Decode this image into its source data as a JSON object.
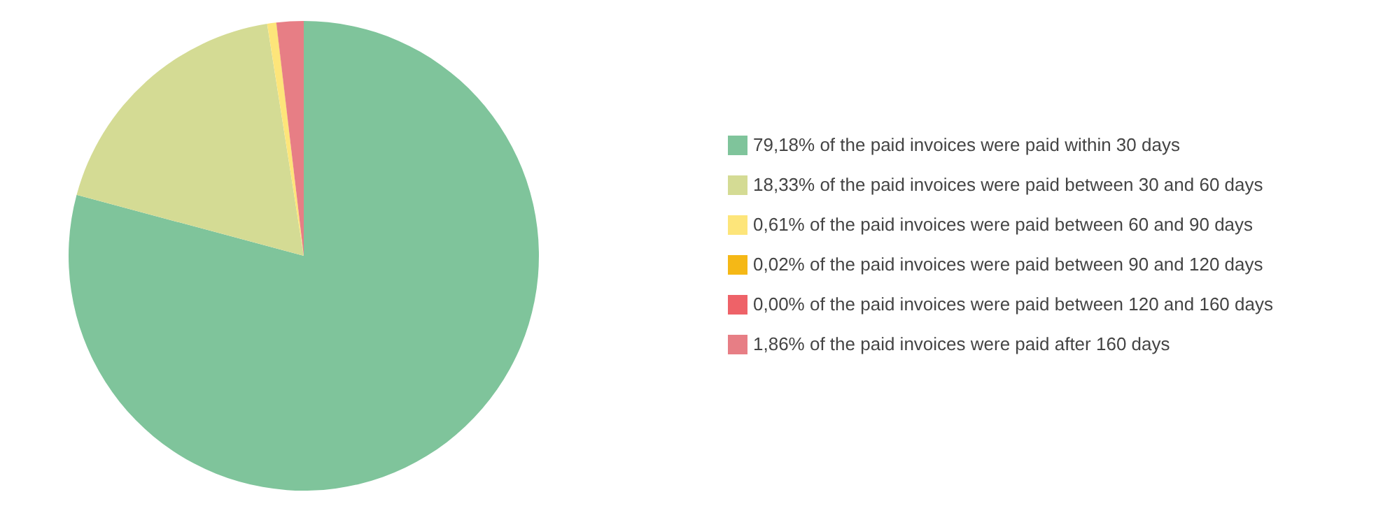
{
  "chart_data": {
    "type": "pie",
    "categories": [
      "79,18% of the paid invoices were paid within 30 days",
      "18,33% of the paid invoices were paid between 30 and 60 days",
      "0,61% of the paid invoices were paid between 60 and 90 days",
      "0,02% of the paid invoices were paid between 90 and 120 days",
      "0,00% of the paid invoices were paid between 120 and 160 days",
      "1,86% of the paid invoices were paid after 160 days"
    ],
    "values": [
      79.18,
      18.33,
      0.61,
      0.02,
      0.0,
      1.86
    ],
    "colors": [
      "#7fc49b",
      "#d4db94",
      "#fde57a",
      "#f5b816",
      "#ee6268",
      "#e77e85"
    ],
    "legend": "right"
  }
}
